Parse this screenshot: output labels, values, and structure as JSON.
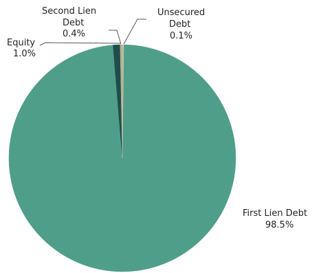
{
  "chart_data": {
    "type": "pie",
    "title": "",
    "slices": [
      {
        "label": "First Lien Debt",
        "value": 98.5,
        "value_label": "98.5%",
        "color": "#4f9e8a"
      },
      {
        "label_lines": [
          "Unsecured",
          "Debt"
        ],
        "value": 0.1,
        "value_label": "0.1%",
        "color": "#c9c5b3"
      },
      {
        "label_lines": [
          "Second Lien",
          "Debt"
        ],
        "value": 0.4,
        "value_label": "0.4%",
        "color": "#b6b08e"
      },
      {
        "label": "Equity",
        "value": 1.0,
        "value_label": "1.0%",
        "color": "#1f4d4c"
      }
    ],
    "start_angle_deg": 0,
    "direction": "clockwise",
    "legend": "none"
  }
}
